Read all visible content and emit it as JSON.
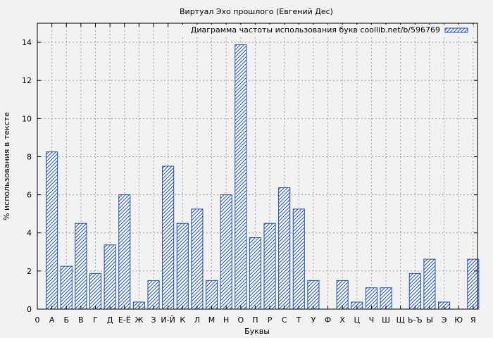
{
  "chart_data": {
    "type": "bar",
    "title": "Виртуал Эхо прошлого (Евгений Дес)",
    "xlabel": "Буквы",
    "ylabel": "% использования в тексте",
    "legend": "Диаграмма частоты использования букв coollib.net/b/596769",
    "legend_position": "top-right",
    "grid": true,
    "xlim_labels_first": "0",
    "ylim": [
      0,
      15
    ],
    "yticks": [
      0,
      2,
      4,
      6,
      8,
      10,
      12,
      14
    ],
    "bar_color": "#1f4fb4",
    "categories": [
      "А",
      "Б",
      "В",
      "Г",
      "Д",
      "Е-Ё",
      "Ж",
      "З",
      "И-Й",
      "К",
      "Л",
      "М",
      "Н",
      "О",
      "П",
      "Р",
      "С",
      "Т",
      "У",
      "Ф",
      "Х",
      "Ц",
      "Ч",
      "Ш",
      "Щ",
      "Ь-Ъ",
      "Ы",
      "Э",
      "Ю",
      "Я"
    ],
    "values": [
      8.25,
      2.25,
      4.5,
      1.87,
      3.37,
      6.0,
      0.37,
      1.5,
      7.5,
      4.5,
      5.25,
      1.5,
      6.0,
      13.87,
      3.75,
      4.5,
      6.37,
      5.25,
      1.5,
      0,
      1.5,
      0.37,
      1.12,
      1.12,
      0,
      1.87,
      2.62,
      0.37,
      0,
      2.62
    ]
  }
}
